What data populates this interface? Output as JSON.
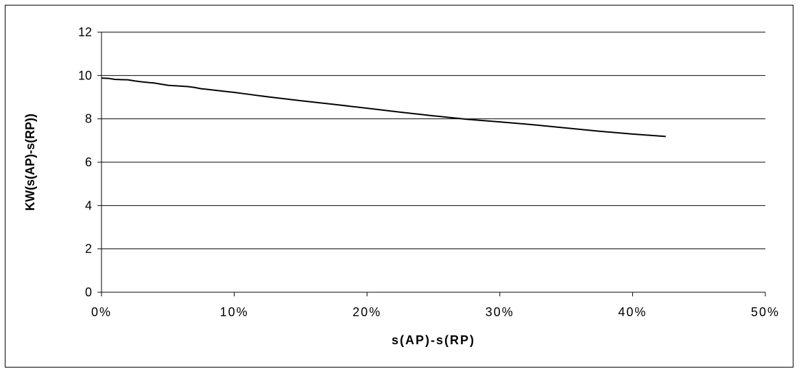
{
  "chart_data": {
    "type": "line",
    "title": "",
    "xlabel": "s(AP)-s(RP)",
    "ylabel": "KW(s(AP)-s(RP))",
    "xlim": [
      0,
      0.5
    ],
    "ylim": [
      0,
      12
    ],
    "x_ticks": [
      0,
      0.1,
      0.2,
      0.3,
      0.4,
      0.5
    ],
    "x_tick_labels": [
      "0%",
      "10%",
      "20%",
      "30%",
      "40%",
      "50%"
    ],
    "y_ticks": [
      0,
      2,
      4,
      6,
      8,
      10,
      12
    ],
    "y_tick_labels": [
      "0",
      "2",
      "4",
      "6",
      "8",
      "10",
      "12"
    ],
    "grid": "horizontal",
    "legend": "none",
    "series": [
      {
        "x": [
          0.0,
          0.005,
          0.01,
          0.015,
          0.02,
          0.025,
          0.03,
          0.035,
          0.04,
          0.045,
          0.05,
          0.055,
          0.06,
          0.065,
          0.07,
          0.075,
          0.08,
          0.09,
          0.1,
          0.11,
          0.125,
          0.15,
          0.175,
          0.2,
          0.225,
          0.25,
          0.275,
          0.3,
          0.325,
          0.35,
          0.375,
          0.4,
          0.425
        ],
        "y": [
          9.88,
          9.87,
          9.82,
          9.81,
          9.8,
          9.75,
          9.71,
          9.68,
          9.65,
          9.6,
          9.55,
          9.53,
          9.51,
          9.49,
          9.45,
          9.39,
          9.36,
          9.29,
          9.22,
          9.14,
          9.02,
          8.84,
          8.67,
          8.49,
          8.31,
          8.14,
          7.98,
          7.86,
          7.73,
          7.58,
          7.43,
          7.3,
          7.19
        ],
        "color": "#000000"
      }
    ]
  }
}
